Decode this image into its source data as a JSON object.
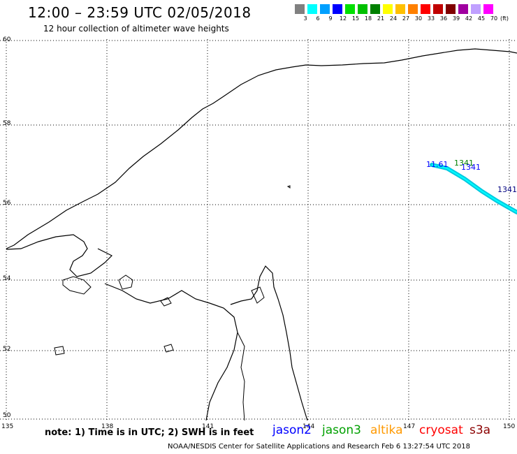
{
  "header": {
    "title": "12:00 – 23:59 UTC 02/05/2018",
    "subtitle": "12 hour collection of altimeter wave heights"
  },
  "legend": {
    "unit": "(ft)",
    "items": [
      {
        "label": "3",
        "color": "#808080"
      },
      {
        "label": "6",
        "color": "#00ffff"
      },
      {
        "label": "9",
        "color": "#00a0ff"
      },
      {
        "label": "12",
        "color": "#0000ff"
      },
      {
        "label": "15",
        "color": "#00e000"
      },
      {
        "label": "18",
        "color": "#00c000"
      },
      {
        "label": "21",
        "color": "#008000"
      },
      {
        "label": "24",
        "color": "#ffff00"
      },
      {
        "label": "27",
        "color": "#ffc000"
      },
      {
        "label": "30",
        "color": "#ff8000"
      },
      {
        "label": "33",
        "color": "#ff0000"
      },
      {
        "label": "36",
        "color": "#c00000"
      },
      {
        "label": "39",
        "color": "#800000"
      },
      {
        "label": "42",
        "color": "#a000a0"
      },
      {
        "label": "45",
        "color": "#c0a0ff"
      },
      {
        "label": "70",
        "color": "#ff00ff"
      }
    ]
  },
  "map": {
    "lon_ticks": [
      "135",
      "138",
      "141",
      "144",
      "147",
      "150"
    ],
    "lat_ticks": [
      "60",
      "58",
      "56",
      "54",
      "52",
      "50"
    ]
  },
  "wave_labels": [
    {
      "text": "11.61",
      "color": "#0000ff"
    },
    {
      "text": "1341",
      "color": "#008000"
    },
    {
      "text": "1341",
      "color": "#0000ff"
    },
    {
      "text": "1341",
      "color": "#000080"
    }
  ],
  "footer": {
    "note": "note: 1) Time is in UTC; 2) SWH is in feet",
    "satellites": [
      {
        "name": "jason2",
        "color": "#0000ff"
      },
      {
        "name": "jason3",
        "color": "#00a000"
      },
      {
        "name": "altika",
        "color": "#ff9900"
      },
      {
        "name": "cryosat",
        "color": "#ff0000"
      },
      {
        "name": "s3a",
        "color": "#8b0000"
      }
    ],
    "credit": "NOAA/NESDIS Center for Satellite Applications and Research    Feb  6 13:27:54 UTC 2018"
  }
}
